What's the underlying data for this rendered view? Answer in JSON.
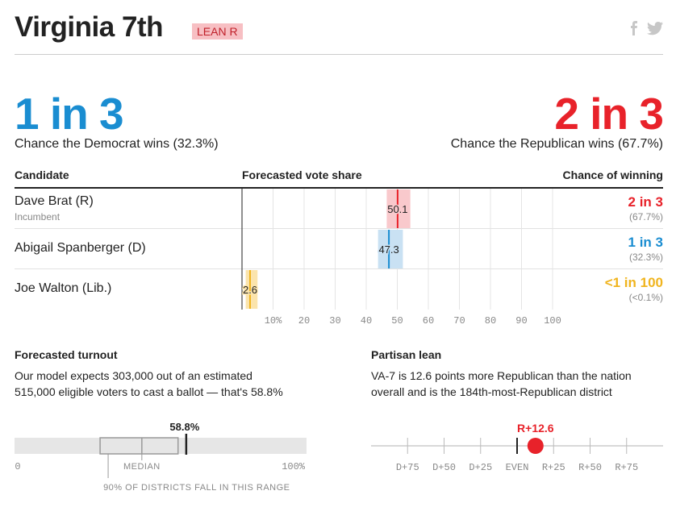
{
  "header": {
    "title": "Virginia 7th",
    "rating": "LEAN R",
    "share": {
      "facebook_icon": "f",
      "twitter_icon": "twitter-bird"
    }
  },
  "odds": {
    "dem": {
      "fraction": "1 in 3",
      "label": "Chance the Democrat wins (32.3%)"
    },
    "rep": {
      "fraction": "2 in 3",
      "label": "Chance the Republican wins (67.7%)"
    }
  },
  "table": {
    "headers": {
      "candidate": "Candidate",
      "share": "Forecasted vote share",
      "chance": "Chance of winning"
    },
    "rows": [
      {
        "name": "Dave Brat (R)",
        "note": "Incumbent",
        "share_label": "50.1",
        "chance": "2 in 3",
        "chance_pct": "(67.7%)"
      },
      {
        "name": "Abigail Spanberger (D)",
        "note": "",
        "share_label": "47.3",
        "chance": "1 in 3",
        "chance_pct": "(32.3%)"
      },
      {
        "name": "Joe Walton (Lib.)",
        "note": "",
        "share_label": "2.6",
        "chance": "<1 in 100",
        "chance_pct": "(<0.1%)"
      }
    ],
    "ticks": [
      "10%",
      "20",
      "30",
      "40",
      "50",
      "60",
      "70",
      "80",
      "90",
      "100"
    ]
  },
  "chart_data": [
    {
      "type": "range",
      "title": "Forecasted vote share",
      "xlim": [
        0,
        100
      ],
      "series": [
        {
          "name": "Dave Brat (R)",
          "value": 50.1,
          "low": 46.6,
          "high": 54.2,
          "color": "#e8222a"
        },
        {
          "name": "Abigail Spanberger (D)",
          "value": 47.3,
          "low": 43.8,
          "high": 51.8,
          "color": "#1a8dd1"
        },
        {
          "name": "Joe Walton (Lib.)",
          "value": 2.6,
          "low": 1.2,
          "high": 5.0,
          "color": "#f0b41e"
        }
      ]
    },
    {
      "type": "range",
      "title": "Forecasted turnout",
      "xlim": [
        0,
        100
      ],
      "value": 58.8,
      "value_label": "58.8%",
      "range_low": 29.3,
      "range_high": 56.0,
      "median": 43.6,
      "median_label": "MEDIAN",
      "range_label": "90% OF DISTRICTS FALL IN THIS RANGE",
      "min_label": "0",
      "max_label": "100%"
    },
    {
      "type": "scatter",
      "title": "Partisan lean",
      "xlim": [
        -100,
        100
      ],
      "value": 12.6,
      "value_label": "R+12.6",
      "ticks": [
        -75,
        -50,
        -25,
        0,
        25,
        50,
        75
      ],
      "tick_labels": [
        "D+75",
        "D+50",
        "D+25",
        "EVEN",
        "R+25",
        "R+50",
        "R+75"
      ]
    }
  ],
  "turnout": {
    "heading": "Forecasted turnout",
    "text_line1": "Our model expects 303,000 out of an estimated",
    "text_line2": "515,000 eligible voters to cast a ballot — that's 58.8%"
  },
  "lean": {
    "heading": "Partisan lean",
    "text_line1": "VA-7 is 12.6 points more Republican than the nation",
    "text_line2": "overall and is the 184th-most-Republican district"
  },
  "colors": {
    "dem": "#1a8dd1",
    "rep": "#e8222a",
    "lib": "#f0b41e"
  }
}
